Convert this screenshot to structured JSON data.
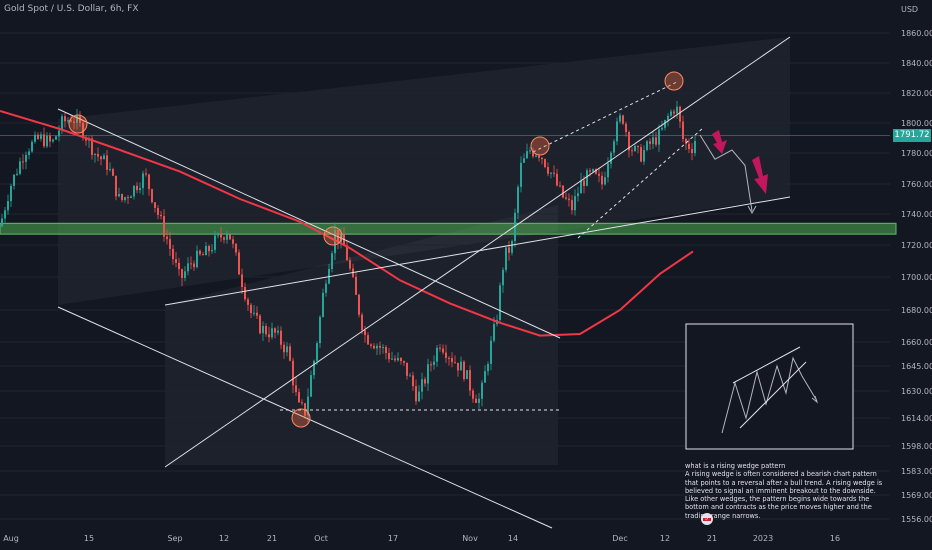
{
  "header": {
    "symbol_title": "Gold Spot / U.S. Dollar, 6h, FX",
    "currency": "USD"
  },
  "price_badge": "1791.72",
  "note": {
    "title": "what is a rising wedge pattern",
    "body": "A rising wedge is often considered a bearish chart pattern that points to a reversal after a bull trend. A rising wedge is believed to signal an imminent breakout to the downside. Like other wedges, the pattern begins wide towards the bottom and contracts as the price moves higher and the trading range narrows."
  },
  "colors": {
    "background": "#131722",
    "up": "#26a69a",
    "down": "#ef5350",
    "moving_average": "#f23645",
    "support_zone": "#4caf50",
    "arrows": "#c2185b",
    "channel_lines": "#ffffff"
  },
  "chart_data": {
    "type": "candlestick",
    "title": "Gold Spot / U.S. Dollar, 6h, FX",
    "y_axis": {
      "unit": "USD",
      "range": [
        1550,
        1870
      ],
      "ticks": [
        1860,
        1840,
        1820,
        1800,
        1780,
        1760,
        1740,
        1720,
        1700,
        1680,
        1660,
        1645,
        1630,
        1614,
        1598,
        1583,
        1569,
        1556
      ]
    },
    "x_axis": {
      "ticks": [
        "Aug",
        "15",
        "Sep",
        "12",
        "21",
        "Oct",
        "17",
        "Nov",
        "14",
        "Dec",
        "12",
        "21",
        "2023",
        "16"
      ]
    },
    "last_price": 1791.72,
    "support_zone": [
      1727,
      1734
    ],
    "price_path": [
      [
        0,
        1732
      ],
      [
        10,
        1758
      ],
      [
        25,
        1782
      ],
      [
        40,
        1790
      ],
      [
        52,
        1786
      ],
      [
        62,
        1800
      ],
      [
        72,
        1804
      ],
      [
        82,
        1796
      ],
      [
        95,
        1780
      ],
      [
        108,
        1772
      ],
      [
        120,
        1748
      ],
      [
        132,
        1756
      ],
      [
        145,
        1766
      ],
      [
        158,
        1740
      ],
      [
        168,
        1722
      ],
      [
        180,
        1698
      ],
      [
        192,
        1710
      ],
      [
        205,
        1714
      ],
      [
        215,
        1722
      ],
      [
        228,
        1730
      ],
      [
        240,
        1702
      ],
      [
        252,
        1676
      ],
      [
        262,
        1668
      ],
      [
        275,
        1665
      ],
      [
        288,
        1654
      ],
      [
        298,
        1620
      ],
      [
        305,
        1618
      ],
      [
        315,
        1652
      ],
      [
        325,
        1698
      ],
      [
        335,
        1728
      ],
      [
        345,
        1718
      ],
      [
        355,
        1690
      ],
      [
        365,
        1664
      ],
      [
        378,
        1658
      ],
      [
        392,
        1650
      ],
      [
        405,
        1644
      ],
      [
        418,
        1626
      ],
      [
        428,
        1642
      ],
      [
        440,
        1660
      ],
      [
        452,
        1650
      ],
      [
        464,
        1642
      ],
      [
        472,
        1630
      ],
      [
        480,
        1624
      ],
      [
        488,
        1650
      ],
      [
        496,
        1672
      ],
      [
        504,
        1712
      ],
      [
        512,
        1720
      ],
      [
        520,
        1770
      ],
      [
        530,
        1782
      ],
      [
        540,
        1780
      ],
      [
        552,
        1766
      ],
      [
        562,
        1752
      ],
      [
        572,
        1744
      ],
      [
        582,
        1762
      ],
      [
        592,
        1766
      ],
      [
        602,
        1760
      ],
      [
        612,
        1788
      ],
      [
        622,
        1806
      ],
      [
        630,
        1784
      ],
      [
        640,
        1778
      ],
      [
        650,
        1786
      ],
      [
        660,
        1792
      ],
      [
        668,
        1804
      ],
      [
        676,
        1812
      ],
      [
        684,
        1786
      ],
      [
        692,
        1784
      ],
      [
        698,
        1794
      ]
    ],
    "moving_average": [
      [
        0,
        1808
      ],
      [
        60,
        1796
      ],
      [
        120,
        1782
      ],
      [
        180,
        1768
      ],
      [
        240,
        1750
      ],
      [
        300,
        1735
      ],
      [
        350,
        1718
      ],
      [
        400,
        1698
      ],
      [
        450,
        1684
      ],
      [
        500,
        1672
      ],
      [
        540,
        1664
      ],
      [
        580,
        1665
      ],
      [
        620,
        1680
      ],
      [
        660,
        1702
      ],
      [
        693,
        1716
      ]
    ],
    "projection": [
      [
        700,
        1792
      ],
      [
        715,
        1776
      ],
      [
        732,
        1782
      ],
      [
        745,
        1772
      ],
      [
        752,
        1742
      ]
    ]
  }
}
